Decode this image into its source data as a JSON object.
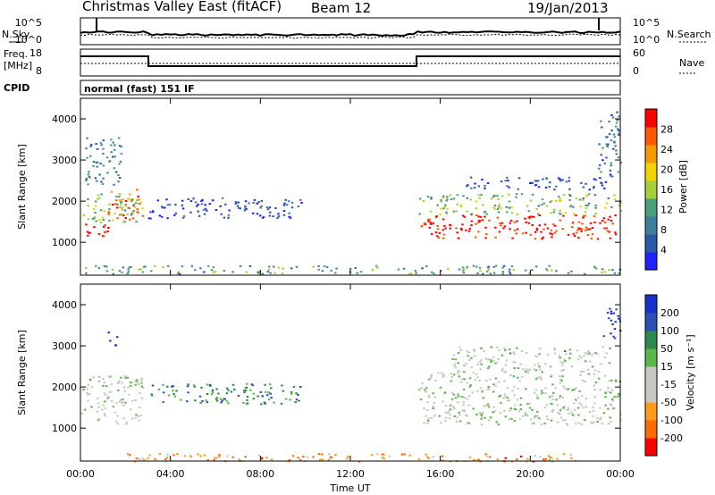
{
  "header": {
    "left": "Christmas Valley East (fitACF)",
    "middle": "Beam 12",
    "right": "19/Jan/2013"
  },
  "noise": {
    "nsky_label": "N.Sky",
    "nsearch_label": "N.Search",
    "left_ticks": [
      "10^5",
      "10^0"
    ],
    "right_ticks": [
      "10^5",
      "10^0"
    ]
  },
  "freq": {
    "label_line1": "Freq.",
    "label_line2": "[MHz]",
    "left_ticks": [
      "18",
      "8"
    ],
    "right_ticks": [
      "60",
      "0"
    ],
    "nave_label": "Nave"
  },
  "cpid": {
    "label": "CPID",
    "value": "normal (fast) 151 IF"
  },
  "chart_data": [
    {
      "type": "heatmap",
      "title": "",
      "xlabel": "Time UT",
      "ylabel": "Slant Range [km]",
      "x_ticks": [
        "00:00",
        "04:00",
        "08:00",
        "12:00",
        "16:00",
        "20:00",
        "00:00"
      ],
      "y_ticks": [
        "1000",
        "2000",
        "3000",
        "4000"
      ],
      "ylim": [
        200,
        4500
      ],
      "colorbar": {
        "label": "Power [dB]",
        "ticks": [
          "28",
          "24",
          "20",
          "16",
          "12",
          "8",
          "4"
        ],
        "range": [
          0,
          32
        ]
      },
      "regions": [
        {
          "t0": 0.0,
          "t1": 1.2,
          "r0": 1100,
          "r1": 1500,
          "level": 0.95
        },
        {
          "t0": 1.2,
          "t1": 2.8,
          "r0": 1500,
          "r1": 2300,
          "level": 0.8
        },
        {
          "t0": 0.0,
          "t1": 2.5,
          "r0": 1500,
          "r1": 2200,
          "level": 0.45
        },
        {
          "t0": 0.2,
          "t1": 1.8,
          "r0": 2400,
          "r1": 3600,
          "level": 0.3
        },
        {
          "t0": 3.0,
          "t1": 9.8,
          "r0": 1600,
          "r1": 2100,
          "level": 0.15
        },
        {
          "t0": 15.1,
          "t1": 24.0,
          "r0": 1100,
          "r1": 1700,
          "level": 0.95
        },
        {
          "t0": 15.0,
          "t1": 24.0,
          "r0": 1700,
          "r1": 2200,
          "level": 0.45
        },
        {
          "t0": 17.0,
          "t1": 23.5,
          "r0": 2300,
          "r1": 2600,
          "level": 0.15
        },
        {
          "t0": 23.0,
          "t1": 24.0,
          "r0": 2600,
          "r1": 4200,
          "level": 0.25
        },
        {
          "t0": 0.0,
          "t1": 24.0,
          "r0": 250,
          "r1": 450,
          "level": 0.35
        }
      ]
    },
    {
      "type": "heatmap",
      "title": "",
      "xlabel": "Time UT",
      "ylabel": "Slant Range [km]",
      "x_ticks": [
        "00:00",
        "04:00",
        "08:00",
        "12:00",
        "16:00",
        "20:00",
        "00:00"
      ],
      "y_ticks": [
        "1000",
        "2000",
        "3000",
        "4000"
      ],
      "ylim": [
        200,
        4500
      ],
      "colorbar": {
        "label": "Velocity [m s⁻¹]",
        "ticks": [
          "200",
          "100",
          "50",
          "15",
          "-15",
          "-50",
          "-100",
          "-200"
        ],
        "range": [
          -200,
          200
        ]
      },
      "regions": [
        {
          "t0": 0.0,
          "t1": 2.8,
          "r0": 1100,
          "r1": 2300,
          "level": 0.5
        },
        {
          "t0": 3.0,
          "t1": 9.8,
          "r0": 1600,
          "r1": 2100,
          "level": 0.72
        },
        {
          "t0": 15.0,
          "t1": 24.0,
          "r0": 1100,
          "r1": 2400,
          "level": 0.5
        },
        {
          "t0": 16.5,
          "t1": 23.5,
          "r0": 2400,
          "r1": 3000,
          "level": 0.52
        },
        {
          "t0": 1.2,
          "t1": 1.6,
          "r0": 3000,
          "r1": 3400,
          "level": 0.98
        },
        {
          "t0": 23.2,
          "t1": 24.0,
          "r0": 3200,
          "r1": 4000,
          "level": 0.9
        },
        {
          "t0": 2.0,
          "t1": 22.0,
          "r0": 200,
          "r1": 400,
          "level": 0.25
        }
      ]
    }
  ]
}
